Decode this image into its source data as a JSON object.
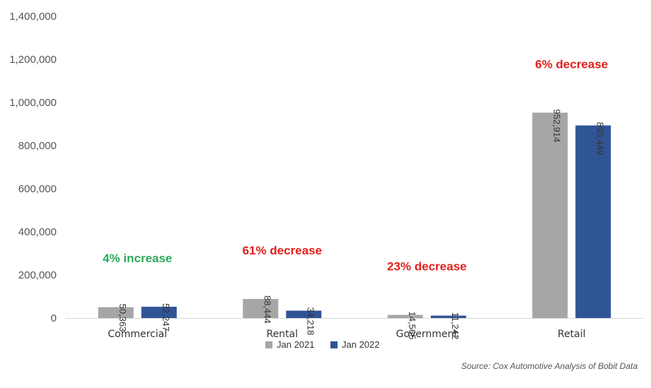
{
  "chart_data": {
    "type": "bar",
    "categories": [
      "Commercial",
      "Rental",
      "Government",
      "Retail"
    ],
    "series": [
      {
        "name": "Jan 2021",
        "values": [
          50363,
          88444,
          14565,
          952914
        ],
        "labels": [
          "50,363",
          "88,444",
          "14,565",
          "952,914"
        ],
        "color": "#a6a6a6"
      },
      {
        "name": "Jan 2022",
        "values": [
          52247,
          34218,
          11242,
          893449
        ],
        "labels": [
          "52,247",
          "34,218",
          "11,242",
          "893,449"
        ],
        "color": "#2f5597"
      }
    ],
    "annotations": [
      {
        "text": "4% increase",
        "color": "#2eaa5c"
      },
      {
        "text": "61% decrease",
        "color": "#e0201b"
      },
      {
        "text": "23% decrease",
        "color": "#e0201b"
      },
      {
        "text": "6% decrease",
        "color": "#e0201b"
      }
    ],
    "yticks": [
      "0",
      "200,000",
      "400,000",
      "600,000",
      "800,000",
      "1,000,000",
      "1,200,000",
      "1,400,000"
    ],
    "ylim": [
      0,
      1400000
    ],
    "grid": false,
    "legend_position": "bottom",
    "source": "Source: Cox Automotive Analysis of Bobit Data"
  }
}
